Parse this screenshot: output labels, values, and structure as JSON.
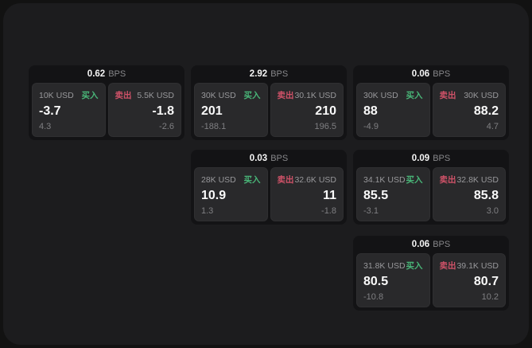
{
  "theme": {
    "outer_bg": "#121212",
    "panel_bg": "#1c1c1e",
    "card_bg": "#131315",
    "tile_bg": "#29292b",
    "text_primary": "#fafafa",
    "text_muted": "#98989b",
    "buy_color": "#49b678",
    "sell_color": "#cf5268"
  },
  "labels": {
    "bps": "BPS",
    "buy": "买入",
    "sell": "卖出"
  },
  "cards": [
    {
      "bps": "0.62",
      "buy": {
        "amount": "10K USD",
        "value": "-3.7",
        "sub": "4.3"
      },
      "sell": {
        "amount": "5.5K USD",
        "value": "-1.8",
        "sub": "-2.6"
      }
    },
    {
      "bps": "2.92",
      "buy": {
        "amount": "30K USD",
        "value": "201",
        "sub": "-188.1"
      },
      "sell": {
        "amount": "30.1K USD",
        "value": "210",
        "sub": "196.5"
      }
    },
    {
      "bps": "0.06",
      "buy": {
        "amount": "30K USD",
        "value": "88",
        "sub": "-4.9"
      },
      "sell": {
        "amount": "30K USD",
        "value": "88.2",
        "sub": "4.7"
      }
    },
    {
      "bps": "0.03",
      "buy": {
        "amount": "28K USD",
        "value": "10.9",
        "sub": "1.3"
      },
      "sell": {
        "amount": "32.6K USD",
        "value": "11",
        "sub": "-1.8"
      }
    },
    {
      "bps": "0.09",
      "buy": {
        "amount": "34.1K USD",
        "value": "85.5",
        "sub": "-3.1"
      },
      "sell": {
        "amount": "32.8K USD",
        "value": "85.8",
        "sub": "3.0"
      }
    },
    {
      "bps": "0.06",
      "buy": {
        "amount": "31.8K USD",
        "value": "80.5",
        "sub": "-10.8"
      },
      "sell": {
        "amount": "39.1K USD",
        "value": "80.7",
        "sub": "10.2"
      }
    }
  ]
}
